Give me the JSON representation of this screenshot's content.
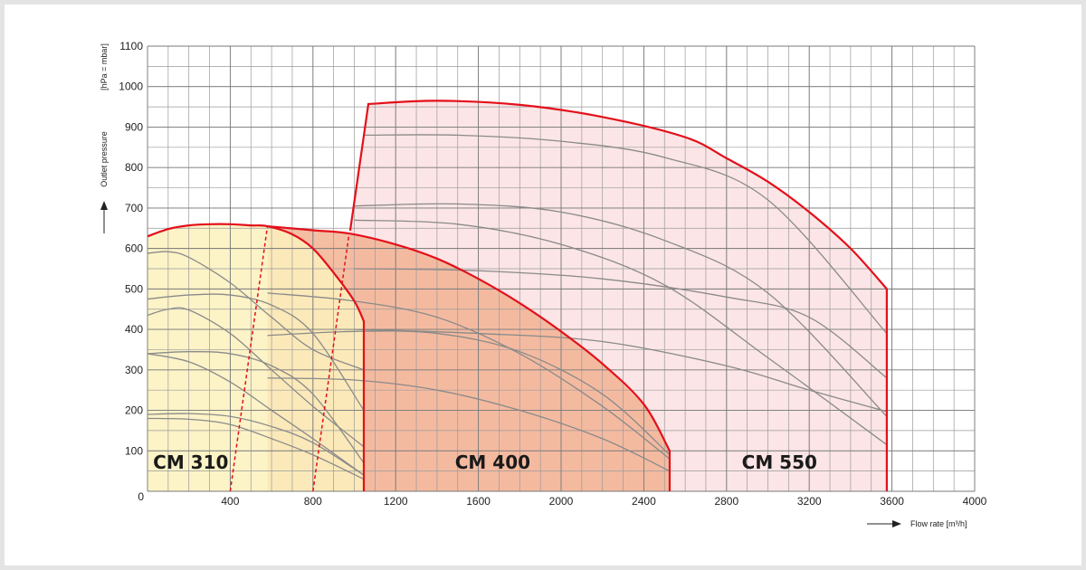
{
  "chart_data": {
    "type": "performance",
    "x_label": "Flow rate  [m³/h]",
    "y_label": "Outlet pressure",
    "y_unit": "[hPa = mbar]",
    "xlim": [
      0,
      4000
    ],
    "ylim": [
      0,
      1100
    ],
    "xticks": [
      0,
      400,
      800,
      1200,
      1600,
      2000,
      2400,
      2800,
      3200,
      3600,
      4000
    ],
    "yticks": [
      0,
      100,
      200,
      300,
      400,
      500,
      600,
      700,
      800,
      900,
      1000,
      1100
    ],
    "grid": true,
    "minor_grid": {
      "x": 100,
      "y": 50
    },
    "envelope_color": "#e3101a",
    "curve_color": "#8a8a8a",
    "series": [
      {
        "name": "CM 550",
        "color": "#fbe1e2",
        "x": [
          980,
          1068,
          1400,
          1800,
          2200,
          2600,
          2800,
          3000,
          3200,
          3400,
          3575,
          3575
        ],
        "values": [
          644,
          957,
          965,
          955,
          925,
          875,
          823,
          765,
          690,
          600,
          500,
          0
        ]
      },
      {
        "name": "CM 400",
        "color": "#f2b393",
        "x": [
          580,
          800,
          975,
          1200,
          1400,
          1600,
          1800,
          2000,
          2200,
          2400,
          2525,
          2525
        ],
        "values": [
          655,
          645,
          637,
          610,
          575,
          525,
          465,
          395,
          315,
          215,
          100,
          0
        ]
      },
      {
        "name": "CM 310",
        "color": "#fcf1bd",
        "x": [
          0,
          100,
          200,
          300,
          400,
          500,
          580,
          700,
          800,
          900,
          1000,
          1046,
          1046
        ],
        "values": [
          630,
          648,
          657,
          660,
          660,
          657,
          655,
          635,
          600,
          540,
          470,
          420,
          0
        ]
      }
    ],
    "boundaries": [
      {
        "x": [
          400,
          580
        ],
        "values": [
          0,
          655
        ]
      },
      {
        "x": [
          800,
          975
        ],
        "values": [
          0,
          637
        ]
      }
    ],
    "curves": [
      {
        "x": [
          0,
          100,
          200,
          400,
          600,
          800,
          1046
        ],
        "values": [
          588,
          592,
          578,
          515,
          430,
          350,
          300
        ]
      },
      {
        "x": [
          0,
          200,
          400,
          600,
          800,
          1046
        ],
        "values": [
          475,
          485,
          485,
          460,
          390,
          200
        ]
      },
      {
        "x": [
          0,
          100,
          200,
          400,
          600,
          800,
          1046
        ],
        "values": [
          435,
          450,
          448,
          390,
          300,
          210,
          110
        ]
      },
      {
        "x": [
          0,
          200,
          400,
          600,
          800,
          1046
        ],
        "values": [
          340,
          345,
          340,
          310,
          240,
          70
        ]
      },
      {
        "x": [
          0,
          200,
          400,
          600,
          800,
          1046
        ],
        "values": [
          340,
          320,
          270,
          200,
          130,
          40
        ]
      },
      {
        "x": [
          0,
          200,
          400,
          600,
          800,
          1046
        ],
        "values": [
          190,
          192,
          185,
          160,
          120,
          40
        ]
      },
      {
        "x": [
          0,
          200,
          400,
          600,
          800,
          1046
        ],
        "values": [
          180,
          178,
          165,
          130,
          90,
          30
        ]
      },
      {
        "x": [
          580,
          1000,
          1400,
          1800,
          2200,
          2525
        ],
        "values": [
          490,
          470,
          430,
          340,
          210,
          80
        ]
      },
      {
        "x": [
          580,
          1000,
          1400,
          1800,
          2200,
          2525
        ],
        "values": [
          385,
          395,
          390,
          345,
          240,
          90
        ]
      },
      {
        "x": [
          580,
          1000,
          1400,
          1800,
          2200,
          2525
        ],
        "values": [
          280,
          275,
          250,
          200,
          130,
          50
        ]
      },
      {
        "x": [
          1050,
          1500,
          2000,
          2500,
          3000,
          3575
        ],
        "values": [
          880,
          880,
          865,
          825,
          720,
          390
        ]
      },
      {
        "x": [
          1000,
          1500,
          2000,
          2500,
          3000,
          3575
        ],
        "values": [
          705,
          710,
          690,
          620,
          490,
          185
        ]
      },
      {
        "x": [
          1000,
          1500,
          2000,
          2500,
          3000,
          3575
        ],
        "values": [
          670,
          660,
          610,
          510,
          330,
          115
        ]
      },
      {
        "x": [
          1000,
          1600,
          2200,
          2800,
          3200,
          3575
        ],
        "values": [
          550,
          545,
          525,
          480,
          430,
          280
        ]
      },
      {
        "x": [
          1000,
          1600,
          2200,
          2800,
          3200,
          3575
        ],
        "values": [
          400,
          390,
          370,
          310,
          250,
          197
        ]
      }
    ]
  }
}
